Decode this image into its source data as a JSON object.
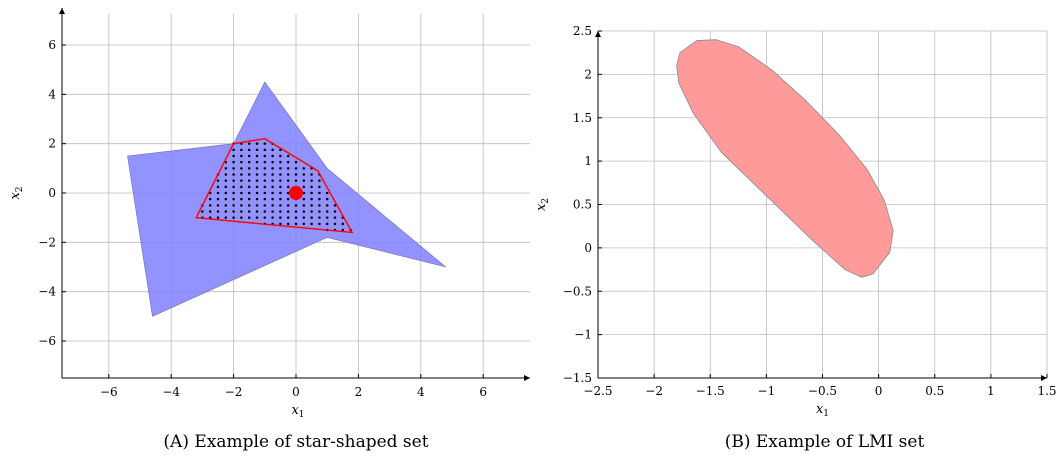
{
  "chart_data": [
    {
      "type": "area",
      "caption": "(A) Example of star-shaped set",
      "xlabel": "x1",
      "ylabel": "x2",
      "xlim": [
        -7.5,
        7.5
      ],
      "ylim": [
        -7.5,
        7.5
      ],
      "xticks": [
        -6,
        -4,
        -2,
        0,
        2,
        4,
        6
      ],
      "yticks": [
        -6,
        -4,
        -2,
        0,
        2,
        4,
        6
      ],
      "grid": true,
      "colors": {
        "star": "#8080ff",
        "inner": "#ff0000",
        "center": "#ff0000",
        "dots": "#000000"
      },
      "star_polygon": [
        [
          -1.0,
          4.5
        ],
        [
          1.0,
          1.0
        ],
        [
          4.8,
          -3.0
        ],
        [
          1.0,
          -1.8
        ],
        [
          -4.6,
          -5.0
        ],
        [
          -5.4,
          1.5
        ],
        [
          -2.0,
          2.0
        ]
      ],
      "inner_polygon": [
        [
          -1.0,
          2.2
        ],
        [
          0.7,
          0.9
        ],
        [
          1.8,
          -1.6
        ],
        [
          -3.2,
          -1.0
        ],
        [
          -2.0,
          2.0
        ]
      ],
      "center_point": [
        0.0,
        0.0
      ],
      "dot_spacing": 0.25
    },
    {
      "type": "area",
      "caption": "(B) Example of LMI set",
      "xlabel": "x1",
      "ylabel": "x2",
      "xlim": [
        -2.5,
        1.5
      ],
      "ylim": [
        -1.5,
        2.5
      ],
      "xticks": [
        -2.5,
        -2,
        -1.5,
        -1,
        -0.5,
        0,
        0.5,
        1,
        1.5
      ],
      "yticks": [
        -1.5,
        -1,
        -0.5,
        0,
        0.5,
        1,
        1.5,
        2,
        2.5
      ],
      "grid": true,
      "colors": {
        "lmi": "#ff9a9a"
      },
      "lmi_boundary": [
        [
          -1.45,
          2.4
        ],
        [
          -1.25,
          2.32
        ],
        [
          -0.95,
          2.05
        ],
        [
          -0.65,
          1.7
        ],
        [
          -0.35,
          1.3
        ],
        [
          -0.1,
          0.9
        ],
        [
          0.05,
          0.55
        ],
        [
          0.13,
          0.2
        ],
        [
          0.1,
          -0.05
        ],
        [
          -0.05,
          -0.3
        ],
        [
          -0.15,
          -0.34
        ],
        [
          -0.3,
          -0.25
        ],
        [
          -0.6,
          0.1
        ],
        [
          -1.0,
          0.6
        ],
        [
          -1.4,
          1.1
        ],
        [
          -1.65,
          1.55
        ],
        [
          -1.78,
          1.9
        ],
        [
          -1.8,
          2.1
        ],
        [
          -1.77,
          2.25
        ],
        [
          -1.62,
          2.39
        ]
      ]
    }
  ],
  "captions": {
    "a": "(A) Example of star-shaped set",
    "b": "(B) Example of LMI set"
  }
}
